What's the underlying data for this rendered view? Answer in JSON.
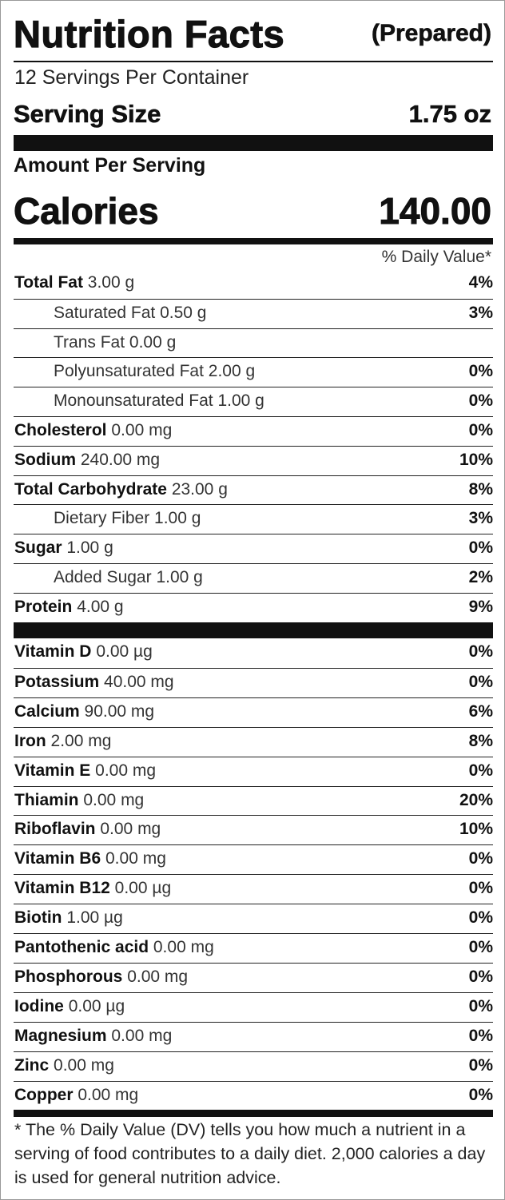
{
  "header": {
    "title": "Nutrition Facts",
    "subtitle": "(Prepared)",
    "servings": "12 Servings Per Container",
    "serving_size_label": "Serving Size",
    "serving_size": "1.75 oz"
  },
  "amount_per_serving": "Amount Per Serving",
  "calories": {
    "label": "Calories",
    "value": "140.00"
  },
  "daily_value_header": "% Daily Value*",
  "nutrients": [
    {
      "name": "Total Fat",
      "amount": "3.00 g",
      "dv": "4%"
    },
    {
      "name": "Saturated Fat",
      "amount": "0.50 g",
      "dv": "3%",
      "indent": true
    },
    {
      "name": "Trans Fat",
      "amount": "0.00 g",
      "indent": true
    },
    {
      "name": "Polyunsaturated Fat",
      "amount": "2.00 g",
      "dv": "0%",
      "indent": true
    },
    {
      "name": "Monounsaturated Fat",
      "amount": "1.00 g",
      "dv": "0%",
      "indent": true
    },
    {
      "name": "Cholesterol",
      "amount": "0.00 mg",
      "dv": "0%"
    },
    {
      "name": "Sodium",
      "amount": "240.00 mg",
      "dv": "10%"
    },
    {
      "name": "Total Carbohydrate",
      "amount": "23.00 g",
      "dv": "8%"
    },
    {
      "name": "Dietary Fiber",
      "amount": "1.00 g",
      "dv": "3%",
      "indent": true
    },
    {
      "name": "Sugar",
      "amount": "1.00 g",
      "dv": "0%"
    },
    {
      "name": "Added Sugar",
      "amount": "1.00 g",
      "dv": "2%",
      "indent": true
    },
    {
      "name": "Protein",
      "amount": "4.00 g",
      "dv": "9%"
    }
  ],
  "vitamins": [
    {
      "name": "Vitamin D",
      "amount": "0.00 µg",
      "dv": "0%"
    },
    {
      "name": "Potassium",
      "amount": "40.00 mg",
      "dv": "0%"
    },
    {
      "name": "Calcium",
      "amount": "90.00 mg",
      "dv": "6%"
    },
    {
      "name": "Iron",
      "amount": "2.00 mg",
      "dv": "8%"
    },
    {
      "name": "Vitamin E",
      "amount": "0.00 mg",
      "dv": "0%"
    },
    {
      "name": "Thiamin",
      "amount": "0.00 mg",
      "dv": "20%"
    },
    {
      "name": "Riboflavin",
      "amount": "0.00 mg",
      "dv": "10%"
    },
    {
      "name": "Vitamin B6",
      "amount": "0.00 mg",
      "dv": "0%"
    },
    {
      "name": "Vitamin B12",
      "amount": "0.00 µg",
      "dv": "0%"
    },
    {
      "name": "Biotin",
      "amount": "1.00 µg",
      "dv": "0%"
    },
    {
      "name": "Pantothenic acid",
      "amount": "0.00 mg",
      "dv": "0%"
    },
    {
      "name": "Phosphorous",
      "amount": "0.00 mg",
      "dv": "0%"
    },
    {
      "name": "Iodine",
      "amount": "0.00 µg",
      "dv": "0%"
    },
    {
      "name": "Magnesium",
      "amount": "0.00 mg",
      "dv": "0%"
    },
    {
      "name": "Zinc",
      "amount": "0.00 mg",
      "dv": "0%"
    },
    {
      "name": "Copper",
      "amount": "0.00 mg",
      "dv": "0%"
    }
  ],
  "footnote": "* The % Daily Value (DV) tells you how much a nutrient in a serving of food contributes to a daily diet. 2,000 calories a day is used for general nutrition advice."
}
